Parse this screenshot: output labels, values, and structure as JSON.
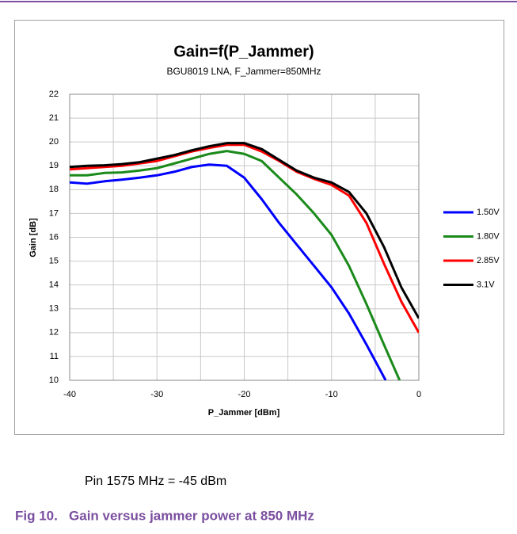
{
  "chart_data": {
    "type": "line",
    "title": "Gain=f(P_Jammer)",
    "subtitle": "BGU8019 LNA, F_Jammer=850MHz",
    "xlabel": "P_Jammer [dBm]",
    "ylabel": "Gain [dB]",
    "xlim": [
      -40,
      0
    ],
    "xticks": [
      -40,
      -30,
      -20,
      -10,
      0
    ],
    "xminor": [
      -35,
      -25,
      -15,
      -5
    ],
    "ylim": [
      10,
      22
    ],
    "yticks": [
      10,
      11,
      12,
      13,
      14,
      15,
      16,
      17,
      18,
      19,
      20,
      21,
      22
    ],
    "grid": true,
    "legend": "right",
    "series": [
      {
        "name": "1.50V",
        "color": "#0000ff",
        "x": [
          -40,
          -38,
          -36,
          -34,
          -32,
          -30,
          -28,
          -26,
          -24,
          -22,
          -20,
          -18,
          -16,
          -14,
          -12,
          -10,
          -8,
          -6,
          -3.8
        ],
        "values": [
          18.3,
          18.25,
          18.35,
          18.42,
          18.5,
          18.6,
          18.75,
          18.95,
          19.05,
          19.0,
          18.5,
          17.6,
          16.6,
          15.7,
          14.8,
          13.9,
          12.8,
          11.5,
          10.0
        ]
      },
      {
        "name": "1.80V",
        "color": "#1a8a1a",
        "x": [
          -40,
          -38,
          -36,
          -34,
          -32,
          -30,
          -28,
          -26,
          -24,
          -22,
          -20,
          -18,
          -16,
          -14,
          -12,
          -10,
          -8,
          -6,
          -4,
          -2.2
        ],
        "values": [
          18.6,
          18.6,
          18.7,
          18.72,
          18.8,
          18.9,
          19.1,
          19.3,
          19.5,
          19.62,
          19.5,
          19.2,
          18.5,
          17.8,
          17.0,
          16.1,
          14.8,
          13.2,
          11.5,
          10.0
        ]
      },
      {
        "name": "2.85V",
        "color": "#ff0000",
        "x": [
          -40,
          -38,
          -36,
          -34,
          -32,
          -30,
          -28,
          -26,
          -24,
          -22,
          -20,
          -18,
          -16,
          -14,
          -12,
          -10,
          -8,
          -6,
          -4,
          -2,
          0
        ],
        "values": [
          18.85,
          18.9,
          18.95,
          19.0,
          19.1,
          19.2,
          19.4,
          19.6,
          19.75,
          19.88,
          19.88,
          19.6,
          19.2,
          18.75,
          18.45,
          18.2,
          17.75,
          16.6,
          14.9,
          13.3,
          12.0
        ]
      },
      {
        "name": "3.1V",
        "color": "#000000",
        "x": [
          -40,
          -38,
          -36,
          -34,
          -32,
          -30,
          -28,
          -26,
          -24,
          -22,
          -20,
          -18,
          -16,
          -14,
          -12,
          -10,
          -8,
          -6,
          -4,
          -2,
          0
        ],
        "values": [
          18.95,
          19.0,
          19.02,
          19.07,
          19.15,
          19.3,
          19.45,
          19.65,
          19.82,
          19.95,
          19.95,
          19.7,
          19.25,
          18.8,
          18.5,
          18.3,
          17.9,
          17.0,
          15.6,
          13.9,
          12.6
        ]
      }
    ]
  },
  "note": "Pin 1575 MHz = -45 dBm",
  "caption": "Fig 10.   Gain versus jammer power at 850 MHz"
}
